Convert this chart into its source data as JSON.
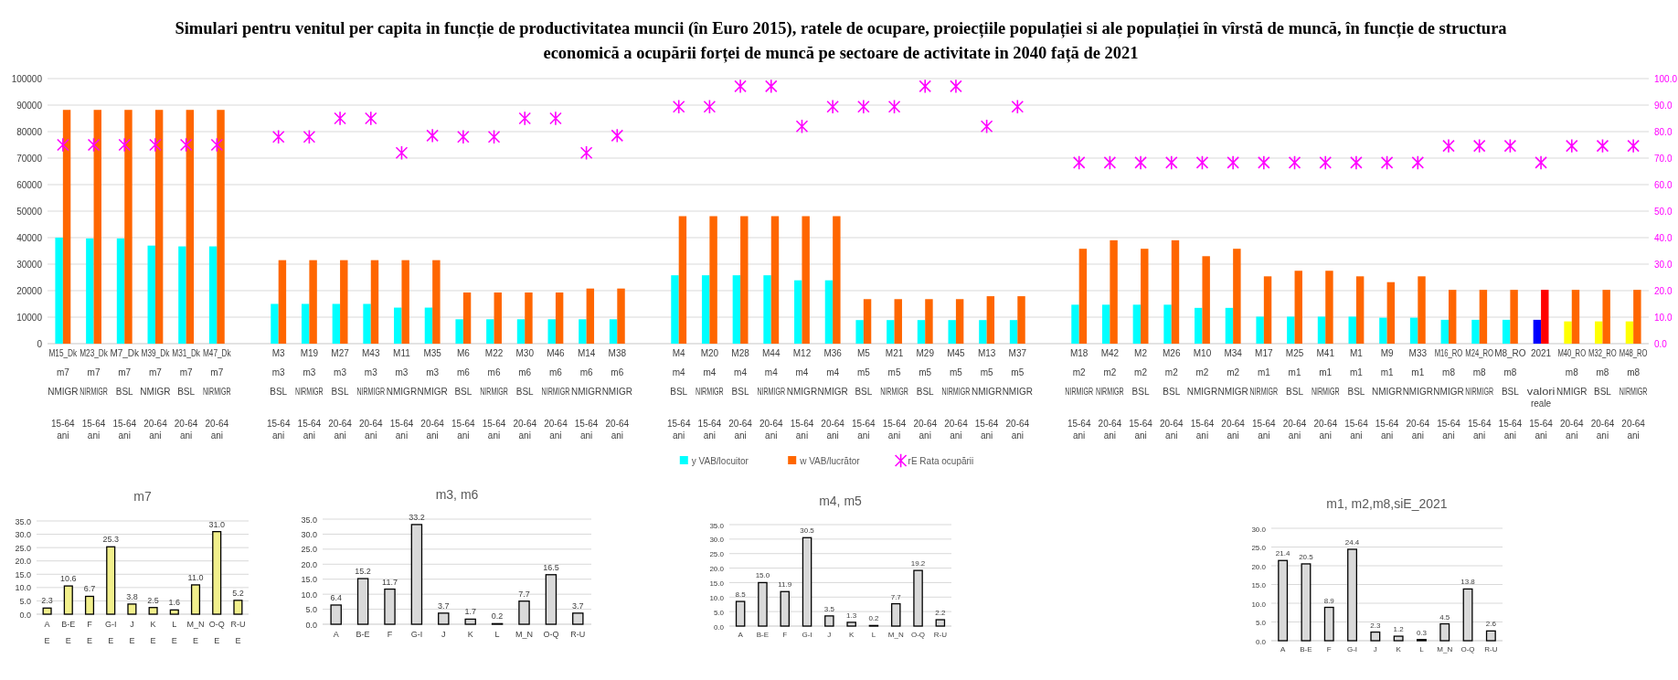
{
  "chart_data": [
    {
      "type": "bar",
      "title": "Simulari pentru venitul per capita in funcție de productivitatea muncii (în Euro 2015), ratele de ocupare, proiecțiile populației si ale populației în vîrstă de muncă, în funcție de structura economică a ocupării forței de muncă pe sectoare de activitate in 2040 față de 2021",
      "categories": [
        "M15_Dk\nm7\nNMIGR\n15-64 ani",
        "M23_Dk\nm7\nNIRMIGR\n15-64 ani",
        "M7_Dk\nm7\nBSL\n15-64 ani",
        "M39_Dk\nm7\nNMIGR\n20-64 ani",
        "M31_Dk\nm7\nBSL\n20-64 ani",
        "M47_Dk\nm7\nNIRMIGR\n20-64 ani",
        null,
        "M3\nm3\nBSL\n15-64 ani",
        "M19\nm3\nNIRMIGR\n15-64 ani",
        "M27\nm3\nBSL\n20-64 ani",
        "M43\nm3\nNIRMIGR\n20-64 ani",
        "M11\nm3\nNMIGR\n15-64 ani",
        "M35\nm3\nNMIGR\n20-64 ani",
        "M6\nm6\nBSL\n15-64 ani",
        "M22\nm6\nNIRMIGR\n15-64 ani",
        "M30\nm6\nBSL\n20-64 ani",
        "M46\nm6\nNIRMIGR\n20-64 ani",
        "M14\nm6\nNMIGR\n15-64 ani",
        "M38\nm6\nNMIGR\n20-64 ani",
        null,
        "M4\nm4\nBSL\n15-64 ani",
        "M20\nm4\nNIRMIGR\n15-64 ani",
        "M28\nm4\nBSL\n20-64 ani",
        "M44\nm4\nNIRMIGR\n20-64 ani",
        "M12\nm4\nNMIGR\n15-64 ani",
        "M36\nm4\nNMIGR\n20-64 ani",
        "M5\nm5\nBSL\n15-64 ani",
        "M21\nm5\nNIRMIGR\n15-64 ani",
        "M29\nm5\nBSL\n20-64 ani",
        "M45\nm5\nNIRMIGR\n20-64 ani",
        "M13\nm5\nNMIGR\n15-64 ani",
        "M37\nm5\nNMIGR\n20-64 ani",
        null,
        "M18\nm2\nNIRMIGR\n15-64 ani",
        "M42\nm2\nNIRMIGR\n20-64 ani",
        "M2\nm2\nBSL\n15-64 ani",
        "M26\nm2\nBSL\n20-64 ani",
        "M10\nm2\nNMIGR\n15-64 ani",
        "M34\nm2\nNMIGR\n20-64 ani",
        "M17\nm1\nNIRMIGR\n15-64 ani",
        "M25\nm1\nBSL\n20-64 ani",
        "M41\nm1\nNIRMIGR\n20-64 ani",
        "M1\nm1\nBSL\n15-64 ani",
        "M9\nm1\nNMIGR\n15-64 ani",
        "M33\nm1\nNMIGR\n20-64 ani",
        "M16_RO\nm8\nNMIGR\n15-64 ani",
        "M24_RO\nm8\nNIRMIGR\n15-64 ani",
        "M8_RO\nm8\nBSL\n15-64 ani",
        "2021\n\nvalori reale\n15-64 ani",
        "M40_RO\nm8\nNMIGR\n20-64 ani",
        "M32_RO\nm8\nBSL\n20-64 ani",
        "M48_RO\nm8\nNIRMIGR\n20-64 ani"
      ],
      "series": [
        {
          "name": "y VAB/locuitor",
          "color": "#00ffff",
          "values": [
            40000,
            39700,
            39700,
            37000,
            36700,
            36700,
            null,
            15000,
            15000,
            15000,
            15000,
            13600,
            13600,
            9200,
            9200,
            9200,
            9200,
            9200,
            9200,
            null,
            25800,
            25800,
            25800,
            25800,
            23900,
            23900,
            8900,
            8900,
            8900,
            8900,
            8900,
            8900,
            null,
            14700,
            14700,
            14700,
            14700,
            13500,
            13500,
            10200,
            10200,
            10200,
            10200,
            9800,
            9800,
            9000,
            9000,
            9000,
            9000,
            8400,
            8400,
            8400
          ],
          "colors": [
            "#00ffff",
            "#00ffff",
            "#00ffff",
            "#00ffff",
            "#00ffff",
            "#00ffff",
            null,
            "#00ffff",
            "#00ffff",
            "#00ffff",
            "#00ffff",
            "#00ffff",
            "#00ffff",
            "#00ffff",
            "#00ffff",
            "#00ffff",
            "#00ffff",
            "#00ffff",
            "#00ffff",
            null,
            "#00ffff",
            "#00ffff",
            "#00ffff",
            "#00ffff",
            "#00ffff",
            "#00ffff",
            "#00ffff",
            "#00ffff",
            "#00ffff",
            "#00ffff",
            "#00ffff",
            "#00ffff",
            null,
            "#00ffff",
            "#00ffff",
            "#00ffff",
            "#00ffff",
            "#00ffff",
            "#00ffff",
            "#00ffff",
            "#00ffff",
            "#00ffff",
            "#00ffff",
            "#00ffff",
            "#00ffff",
            "#00ffff",
            "#00ffff",
            "#00ffff",
            "#0000ff",
            "#ffff00",
            "#ffff00",
            "#ffff00"
          ]
        },
        {
          "name": "w VAB/lucrător",
          "color": "#ff6600",
          "values": [
            88200,
            88200,
            88200,
            88200,
            88200,
            88200,
            null,
            31500,
            31500,
            31500,
            31500,
            31500,
            31500,
            19300,
            19300,
            19300,
            19300,
            20800,
            20800,
            null,
            48100,
            48100,
            48100,
            48100,
            48100,
            48100,
            16800,
            16800,
            16800,
            16800,
            17900,
            17900,
            null,
            35800,
            39000,
            35800,
            39000,
            33000,
            35800,
            25400,
            27500,
            27500,
            25400,
            23200,
            25400,
            20300,
            20300,
            20300,
            20300,
            20300,
            20300,
            20300
          ],
          "colors": [
            "#ff6600",
            "#ff6600",
            "#ff6600",
            "#ff6600",
            "#ff6600",
            "#ff6600",
            null,
            "#ff6600",
            "#ff6600",
            "#ff6600",
            "#ff6600",
            "#ff6600",
            "#ff6600",
            "#ff6600",
            "#ff6600",
            "#ff6600",
            "#ff6600",
            "#ff6600",
            "#ff6600",
            null,
            "#ff6600",
            "#ff6600",
            "#ff6600",
            "#ff6600",
            "#ff6600",
            "#ff6600",
            "#ff6600",
            "#ff6600",
            "#ff6600",
            "#ff6600",
            "#ff6600",
            "#ff6600",
            null,
            "#ff6600",
            "#ff6600",
            "#ff6600",
            "#ff6600",
            "#ff6600",
            "#ff6600",
            "#ff6600",
            "#ff6600",
            "#ff6600",
            "#ff6600",
            "#ff6600",
            "#ff6600",
            "#ff6600",
            "#ff6600",
            "#ff6600",
            "#ff0000",
            "#ff6600",
            "#ff6600",
            "#ff6600"
          ]
        },
        {
          "name": "rE Rata ocupării",
          "type": "scatter",
          "axis": "y2",
          "color": "#ff00ff",
          "values": [
            75,
            75,
            75,
            75,
            75,
            75,
            null,
            78,
            78,
            85,
            85,
            72,
            78.5,
            78,
            78,
            85,
            85,
            72,
            78.5,
            null,
            89.4,
            89.4,
            97.1,
            97.1,
            82,
            89.4,
            89.4,
            89.4,
            97.1,
            97.1,
            82,
            89.4,
            null,
            68.3,
            68.3,
            68.3,
            68.3,
            68.3,
            68.3,
            68.3,
            68.3,
            68.3,
            68.3,
            68.3,
            68.3,
            74.6,
            74.6,
            74.6,
            68.3,
            74.6,
            74.6,
            74.6
          ]
        }
      ],
      "ylim": [
        0,
        100000
      ],
      "yticks": [
        0,
        10000,
        20000,
        30000,
        40000,
        50000,
        60000,
        70000,
        80000,
        90000,
        100000
      ],
      "y2lim": [
        0,
        100
      ],
      "y2ticks": [
        {
          "value": 0,
          "label": "0.0"
        },
        {
          "value": 10,
          "label": "10.0"
        },
        {
          "value": 20,
          "label": "20.0"
        },
        {
          "value": 30,
          "label": "30.0"
        },
        {
          "value": 40,
          "label": "40.0"
        },
        {
          "value": 50,
          "label": "50.0"
        },
        {
          "value": 60,
          "label": "60.0"
        },
        {
          "value": 70,
          "label": "70.0"
        },
        {
          "value": 80,
          "label": "80.0"
        },
        {
          "value": 90,
          "label": "90.0"
        },
        {
          "value": 100,
          "label": "100.0"
        }
      ],
      "grid": "y",
      "legend": "bottom",
      "marker": "cross"
    },
    {
      "type": "bar",
      "title": "m7",
      "categories": [
        "A\nE",
        "B-E\nE",
        "F\nE",
        "G-I\nE",
        "J\nE",
        "K\nE",
        "L\nE",
        "M_N\nE",
        "O-Q\nE",
        "R-U\nE"
      ],
      "values": [
        2.3,
        10.6,
        6.7,
        25.3,
        3.8,
        2.5,
        1.6,
        11.0,
        31.0,
        5.2
      ],
      "value_labels": [
        "2.3",
        "10.6",
        "6.7",
        "25.3",
        "3.8",
        "2.5",
        "1.6",
        "11.0",
        "31.0",
        "5.2"
      ],
      "color": "#f2f08c",
      "ylim": [
        0,
        35
      ],
      "yticks": [
        {
          "value": 0,
          "label": "0.0"
        },
        {
          "value": 5,
          "label": "5.0"
        },
        {
          "value": 10,
          "label": "10.0"
        },
        {
          "value": 15,
          "label": "15.0"
        },
        {
          "value": 20,
          "label": "20.0"
        },
        {
          "value": 25,
          "label": "25.0"
        },
        {
          "value": 30,
          "label": "30.0"
        },
        {
          "value": 35,
          "label": "35.0"
        }
      ],
      "grid": "y"
    },
    {
      "type": "bar",
      "title": "m3, m6",
      "categories": [
        "A",
        "B-E",
        "F",
        "G-I",
        "J",
        "K",
        "L",
        "M_N",
        "O-Q",
        "R-U"
      ],
      "values": [
        6.4,
        15.2,
        11.7,
        33.2,
        3.7,
        1.7,
        0.2,
        7.7,
        16.5,
        3.7
      ],
      "value_labels": [
        "6.4",
        "15.2",
        "11.7",
        "33.2",
        "3.7",
        "1.7",
        "0.2",
        "7.7",
        "16.5",
        "3.7"
      ],
      "color": "#d9d9d9",
      "ylim": [
        0,
        35
      ],
      "yticks": [
        {
          "value": 0,
          "label": "0.0"
        },
        {
          "value": 5,
          "label": "5.0"
        },
        {
          "value": 10,
          "label": "10.0"
        },
        {
          "value": 15,
          "label": "15.0"
        },
        {
          "value": 20,
          "label": "20.0"
        },
        {
          "value": 25,
          "label": "25.0"
        },
        {
          "value": 30,
          "label": "30.0"
        },
        {
          "value": 35,
          "label": "35.0"
        }
      ],
      "grid": "y"
    },
    {
      "type": "bar",
      "title": "m4, m5",
      "categories": [
        "A",
        "B-E",
        "F",
        "G-I",
        "J",
        "K",
        "L",
        "M_N",
        "O-Q",
        "R-U"
      ],
      "values": [
        8.5,
        15.0,
        11.9,
        30.5,
        3.5,
        1.3,
        0.2,
        7.7,
        19.2,
        2.2
      ],
      "value_labels": [
        "8.5",
        "15.0",
        "11.9",
        "30.5",
        "3.5",
        "1.3",
        "0.2",
        "7.7",
        "19.2",
        "2.2"
      ],
      "color": "#d9d9d9",
      "ylim": [
        0,
        35
      ],
      "yticks": [
        {
          "value": 0,
          "label": "0.0"
        },
        {
          "value": 5,
          "label": "5.0"
        },
        {
          "value": 10,
          "label": "10.0"
        },
        {
          "value": 15,
          "label": "15.0"
        },
        {
          "value": 20,
          "label": "20.0"
        },
        {
          "value": 25,
          "label": "25.0"
        },
        {
          "value": 30,
          "label": "30.0"
        },
        {
          "value": 35,
          "label": "35.0"
        }
      ],
      "grid": "y"
    },
    {
      "type": "bar",
      "title": "m1, m2,m8,siE_2021",
      "categories": [
        "A",
        "B-E",
        "F",
        "G-I",
        "J",
        "K",
        "L",
        "M_N",
        "O-Q",
        "R-U"
      ],
      "values": [
        21.4,
        20.5,
        8.9,
        24.4,
        2.3,
        1.2,
        0.3,
        4.5,
        13.8,
        2.6
      ],
      "value_labels": [
        "21.4",
        "20.5",
        "8.9",
        "24.4",
        "2.3",
        "1.2",
        "0.3",
        "4.5",
        "13.8",
        "2.6"
      ],
      "color": "#d9d9d9",
      "ylim": [
        0,
        30
      ],
      "yticks": [
        {
          "value": 0,
          "label": "0.0"
        },
        {
          "value": 5,
          "label": "5.0"
        },
        {
          "value": 10,
          "label": "10.0"
        },
        {
          "value": 15,
          "label": "15.0"
        },
        {
          "value": 20,
          "label": "20.0"
        },
        {
          "value": 25,
          "label": "25.0"
        },
        {
          "value": 30,
          "label": "30.0"
        }
      ],
      "grid": "y"
    }
  ]
}
